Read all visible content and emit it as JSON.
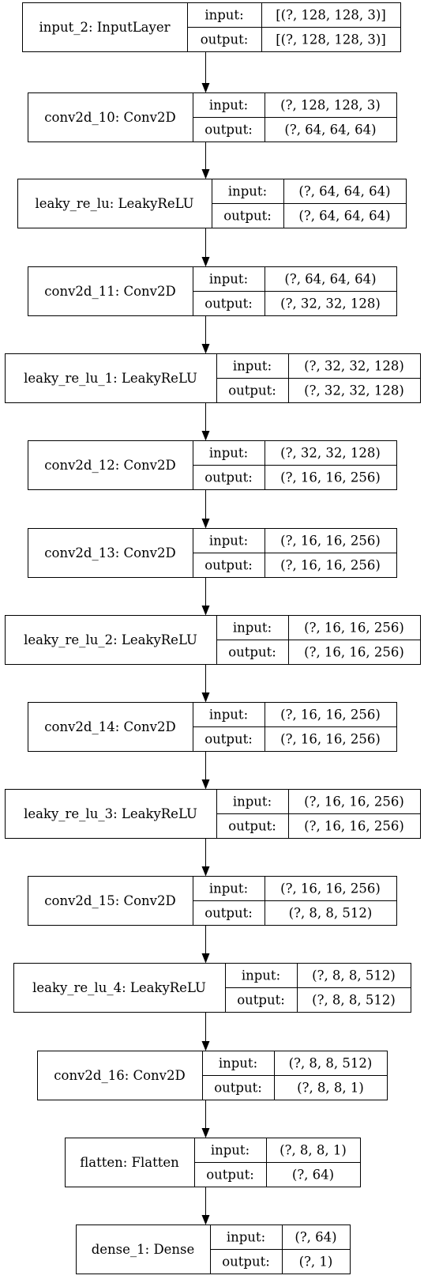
{
  "diagram": {
    "input_label": "input:",
    "output_label": "output:",
    "layers": [
      {
        "name": "input_2: InputLayer",
        "input": "[(?, 128, 128, 3)]",
        "output": "[(?, 128, 128, 3)]"
      },
      {
        "name": "conv2d_10: Conv2D",
        "input": "(?, 128, 128, 3)",
        "output": "(?, 64, 64, 64)"
      },
      {
        "name": "leaky_re_lu: LeakyReLU",
        "input": "(?, 64, 64, 64)",
        "output": "(?, 64, 64, 64)"
      },
      {
        "name": "conv2d_11: Conv2D",
        "input": "(?, 64, 64, 64)",
        "output": "(?, 32, 32, 128)"
      },
      {
        "name": "leaky_re_lu_1: LeakyReLU",
        "input": "(?, 32, 32, 128)",
        "output": "(?, 32, 32, 128)"
      },
      {
        "name": "conv2d_12: Conv2D",
        "input": "(?, 32, 32, 128)",
        "output": "(?, 16, 16, 256)"
      },
      {
        "name": "conv2d_13: Conv2D",
        "input": "(?, 16, 16, 256)",
        "output": "(?, 16, 16, 256)"
      },
      {
        "name": "leaky_re_lu_2: LeakyReLU",
        "input": "(?, 16, 16, 256)",
        "output": "(?, 16, 16, 256)"
      },
      {
        "name": "conv2d_14: Conv2D",
        "input": "(?, 16, 16, 256)",
        "output": "(?, 16, 16, 256)"
      },
      {
        "name": "leaky_re_lu_3: LeakyReLU",
        "input": "(?, 16, 16, 256)",
        "output": "(?, 16, 16, 256)"
      },
      {
        "name": "conv2d_15: Conv2D",
        "input": "(?, 16, 16, 256)",
        "output": "(?, 8, 8, 512)"
      },
      {
        "name": "leaky_re_lu_4: LeakyReLU",
        "input": "(?, 8, 8, 512)",
        "output": "(?, 8, 8, 512)"
      },
      {
        "name": "conv2d_16: Conv2D",
        "input": "(?, 8, 8, 512)",
        "output": "(?, 8, 8, 1)"
      },
      {
        "name": "flatten: Flatten",
        "input": "(?, 8, 8, 1)",
        "output": "(?, 64)"
      },
      {
        "name": "dense_1: Dense",
        "input": "(?, 64)",
        "output": "(?, 1)"
      }
    ]
  }
}
